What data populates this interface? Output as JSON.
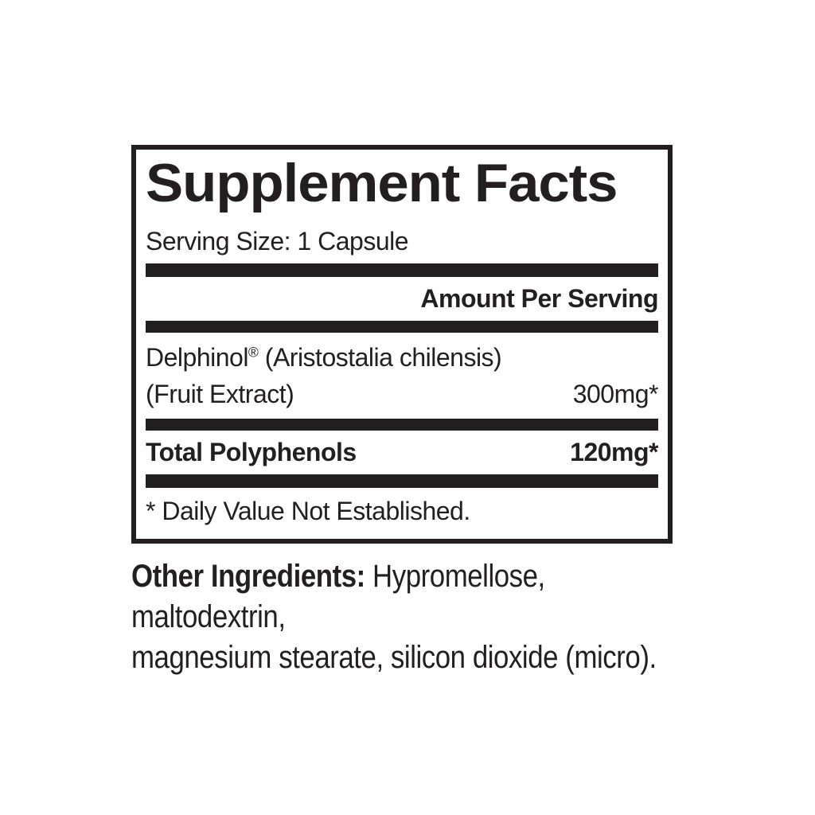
{
  "colors": {
    "ink": "#231f20",
    "background": "#ffffff"
  },
  "label": {
    "title": "Supplement Facts",
    "serving_size": "Serving Size: 1 Capsule",
    "amount_header": "Amount Per Serving",
    "ingredient": {
      "name": "Delphinol",
      "registered_mark": "®",
      "name_suffix": " (Aristostalia chilensis)",
      "subname": "(Fruit Extract)",
      "amount": "300mg*"
    },
    "total_polyphenols": {
      "name": "Total Polyphenols",
      "amount": "120mg*"
    },
    "footnote": "* Daily Value Not Established."
  },
  "other_ingredients": {
    "lead": "Other Ingredients:",
    "line1_rest": " Hypromellose, maltodextrin,",
    "line2": "magnesium stearate, silicon dioxide (micro)."
  }
}
